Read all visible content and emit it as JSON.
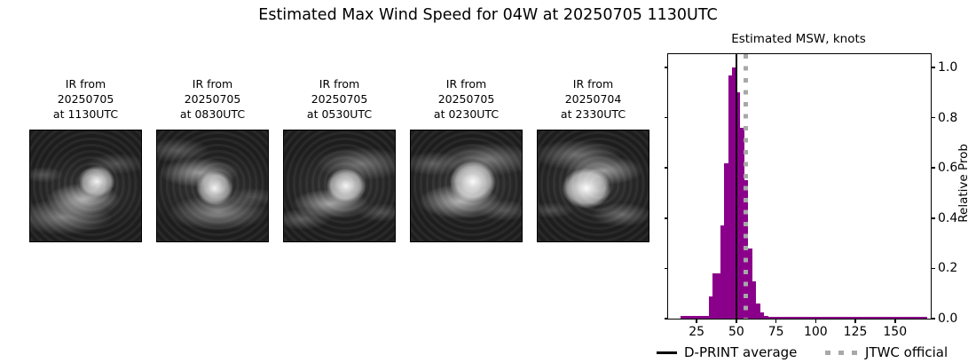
{
  "title": "Estimated Max Wind Speed for 04W at 20250705 1130UTC",
  "panels": [
    {
      "line1": "IR from",
      "line2": "20250705",
      "line3": "at 1130UTC"
    },
    {
      "line1": "IR from",
      "line2": "20250705",
      "line3": "at 0830UTC"
    },
    {
      "line1": "IR from",
      "line2": "20250705",
      "line3": "at 0530UTC"
    },
    {
      "line1": "IR from",
      "line2": "20250705",
      "line3": "at 0230UTC"
    },
    {
      "line1": "IR from",
      "line2": "20250704",
      "line3": "at 2330UTC"
    }
  ],
  "chart_data": {
    "type": "bar",
    "title": "Estimated MSW, knots",
    "xlabel": "",
    "ylabel": "Relative Prob",
    "x_ticks": [
      25,
      50,
      75,
      100,
      125,
      150
    ],
    "y_ticks": [
      "0.0",
      "0.2",
      "0.4",
      "0.6",
      "0.8",
      "1.0"
    ],
    "xlim": [
      7,
      172.5
    ],
    "ylim": [
      0,
      1.053
    ],
    "grid": false,
    "bin_width_knots": 2.5,
    "bins": [
      [
        15,
        17.5,
        0.012
      ],
      [
        17.5,
        20,
        0.012
      ],
      [
        20,
        22.5,
        0.012
      ],
      [
        22.5,
        25,
        0.012
      ],
      [
        25,
        27.5,
        0.012
      ],
      [
        27.5,
        30,
        0.012
      ],
      [
        30,
        32.5,
        0.012
      ],
      [
        32.5,
        35,
        0.09
      ],
      [
        35,
        37.5,
        0.18
      ],
      [
        37.5,
        40,
        0.18
      ],
      [
        40,
        42.5,
        0.37
      ],
      [
        42.5,
        45,
        0.62
      ],
      [
        45,
        47.5,
        0.97
      ],
      [
        47.5,
        50,
        1.0
      ],
      [
        50,
        52.5,
        0.9
      ],
      [
        52.5,
        55,
        0.76
      ],
      [
        55,
        57.5,
        0.55
      ],
      [
        57.5,
        60,
        0.28
      ],
      [
        60,
        62.5,
        0.15
      ],
      [
        62.5,
        65,
        0.06
      ],
      [
        65,
        67.5,
        0.025
      ],
      [
        67.5,
        70,
        0.012
      ],
      [
        70,
        170,
        0.006
      ]
    ],
    "dprint_average_knots": 50,
    "jtwc_official_knots": 56,
    "colors": {
      "histogram": "#8B008B",
      "dprint_line": "#000000",
      "jtwc_line": "#a8a8a8"
    }
  },
  "legend": [
    {
      "label": "D-PRINT average",
      "style": "solid-black-line"
    },
    {
      "label": "JTWC official",
      "style": "dotted-gray-line"
    }
  ]
}
